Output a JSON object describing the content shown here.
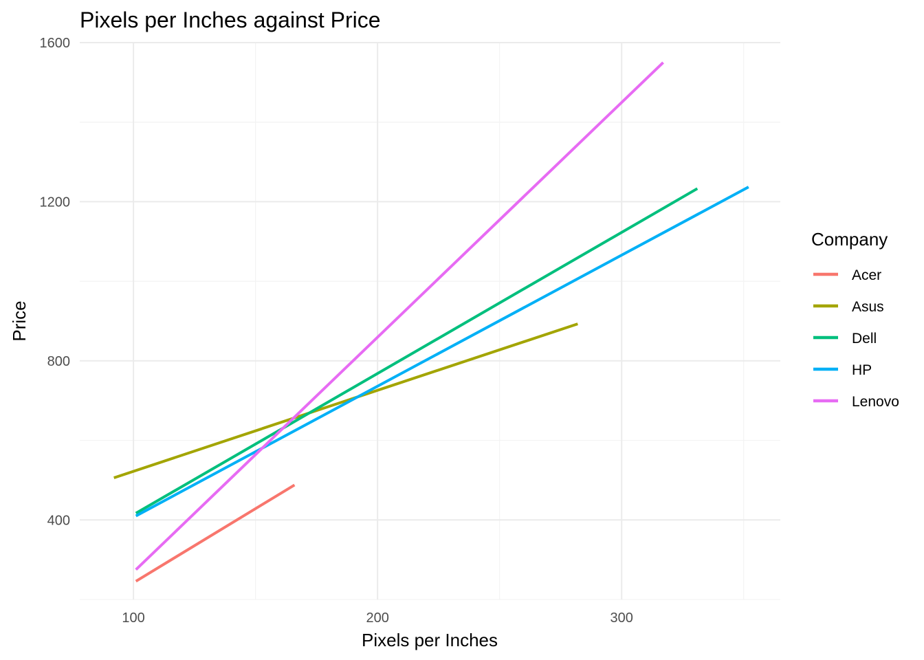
{
  "chart_data": {
    "type": "line",
    "title": "Pixels per Inches against Price",
    "xlabel": "Pixels per Inches",
    "ylabel": "Price",
    "xlim": [
      78,
      365
    ],
    "ylim": [
      200,
      1600
    ],
    "x_ticks": [
      100,
      200,
      300
    ],
    "y_ticks": [
      400,
      800,
      1200,
      1600
    ],
    "x_tick_labels": [
      "100",
      "200",
      "300"
    ],
    "y_tick_labels": [
      "400",
      "800",
      "1200",
      "1600"
    ],
    "grid": true,
    "legend": {
      "title": "Company",
      "position": "right"
    },
    "series": [
      {
        "name": "Acer",
        "color": "#F8766D",
        "x": [
          101,
          166
        ],
        "y": [
          246,
          488
        ]
      },
      {
        "name": "Asus",
        "color": "#A3A500",
        "x": [
          92,
          282
        ],
        "y": [
          506,
          893
        ]
      },
      {
        "name": "Dell",
        "color": "#00BF7D",
        "x": [
          101,
          331
        ],
        "y": [
          417,
          1233
        ]
      },
      {
        "name": "HP",
        "color": "#00B0F6",
        "x": [
          101,
          352
        ],
        "y": [
          410,
          1237
        ]
      },
      {
        "name": "Lenovo",
        "color": "#E76BF3",
        "x": [
          101,
          317
        ],
        "y": [
          275,
          1550
        ]
      }
    ]
  }
}
